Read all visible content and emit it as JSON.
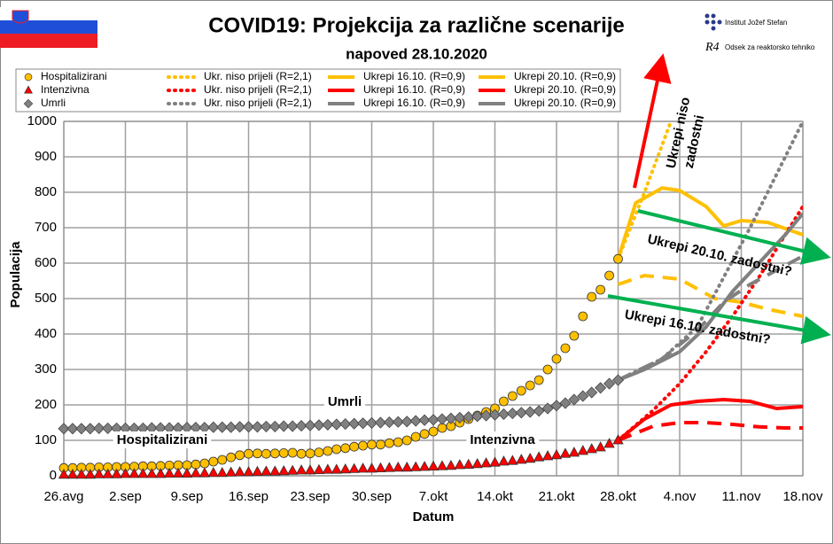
{
  "header": {
    "institute": "Institut Jožef Stefan",
    "logo": "R4",
    "department": "Odsek za reaktorsko tehniko"
  },
  "chart_data": {
    "type": "line",
    "title": "COVID19: Projekcija za različne scenarije",
    "subtitle": "napoved 28.10.2020",
    "x_label": "Datum",
    "y_label": "Populacija",
    "xlim": [
      0,
      84
    ],
    "ylim": [
      0,
      1000
    ],
    "xticks": [
      {
        "value": 0,
        "label": "26.avg"
      },
      {
        "value": 7,
        "label": "2.sep"
      },
      {
        "value": 14,
        "label": "9.sep"
      },
      {
        "value": 21,
        "label": "16.sep"
      },
      {
        "value": 28,
        "label": "23.sep"
      },
      {
        "value": 35,
        "label": "30.sep"
      },
      {
        "value": 42,
        "label": "7.okt"
      },
      {
        "value": 49,
        "label": "14.okt"
      },
      {
        "value": 56,
        "label": "21.okt"
      },
      {
        "value": 63,
        "label": "28.okt"
      },
      {
        "value": 70,
        "label": "4.nov"
      },
      {
        "value": 77,
        "label": "11.nov"
      },
      {
        "value": 84,
        "label": "18.nov"
      }
    ],
    "yticks": [
      0,
      100,
      200,
      300,
      400,
      500,
      600,
      700,
      800,
      900,
      1000
    ],
    "grid": true,
    "series": [
      {
        "name": "Hospitalizirani",
        "color": "#FFC000",
        "marker": "circle",
        "x": [
          0,
          1,
          2,
          3,
          4,
          5,
          6,
          7,
          8,
          9,
          10,
          11,
          12,
          13,
          14,
          15,
          16,
          17,
          18,
          19,
          20,
          21,
          22,
          23,
          24,
          25,
          26,
          27,
          28,
          29,
          30,
          31,
          32,
          33,
          34,
          35,
          36,
          37,
          38,
          39,
          40,
          41,
          42,
          43,
          44,
          45,
          46,
          47,
          48,
          49,
          50,
          51,
          52,
          53,
          54,
          55,
          56,
          57,
          58,
          59,
          60,
          61,
          62,
          63
        ],
        "values": [
          22,
          22,
          23,
          23,
          24,
          24,
          25,
          25,
          26,
          27,
          27,
          28,
          29,
          30,
          30,
          32,
          35,
          40,
          45,
          52,
          58,
          62,
          63,
          62,
          63,
          64,
          65,
          62,
          63,
          66,
          70,
          75,
          78,
          82,
          85,
          88,
          88,
          92,
          95,
          100,
          110,
          118,
          125,
          135,
          140,
          150,
          160,
          170,
          180,
          190,
          210,
          225,
          240,
          255,
          270,
          300,
          330,
          360,
          395,
          450,
          505,
          525,
          565,
          612
        ]
      },
      {
        "name": "Ukr. niso prijeli (R=2,1)",
        "color": "#FFC000",
        "style": "dotted",
        "x": [
          63,
          66,
          69
        ],
        "values": [
          612,
          800,
          1000
        ]
      },
      {
        "name": "Ukrepi 16.10. (R=0,9)",
        "color": "#FFC000",
        "style": "dashed",
        "x": [
          63,
          66,
          70,
          74,
          77,
          80,
          84
        ],
        "values": [
          540,
          565,
          555,
          500,
          490,
          470,
          450
        ]
      },
      {
        "name": "Ukrepi 20.10. (R=0,9)",
        "color": "#FFC000",
        "style": "solid",
        "x": [
          63,
          65,
          68,
          70,
          73,
          75,
          77,
          80,
          84
        ],
        "values": [
          612,
          770,
          812,
          805,
          760,
          705,
          720,
          715,
          680
        ]
      },
      {
        "name": "Intenzivna",
        "color": "#FF0000",
        "marker": "triangle",
        "x": [
          0,
          1,
          2,
          3,
          4,
          5,
          6,
          7,
          8,
          9,
          10,
          11,
          12,
          13,
          14,
          15,
          16,
          17,
          18,
          19,
          20,
          21,
          22,
          23,
          24,
          25,
          26,
          27,
          28,
          29,
          30,
          31,
          32,
          33,
          34,
          35,
          36,
          37,
          38,
          39,
          40,
          41,
          42,
          43,
          44,
          45,
          46,
          47,
          48,
          49,
          50,
          51,
          52,
          53,
          54,
          55,
          56,
          57,
          58,
          59,
          60,
          61,
          62,
          63
        ],
        "values": [
          3,
          3,
          3,
          3,
          4,
          4,
          4,
          5,
          5,
          5,
          5,
          5,
          6,
          6,
          6,
          7,
          7,
          8,
          8,
          9,
          10,
          10,
          11,
          12,
          12,
          13,
          14,
          15,
          15,
          16,
          17,
          17,
          18,
          19,
          20,
          20,
          21,
          22,
          23,
          23,
          24,
          25,
          26,
          27,
          28,
          30,
          31,
          33,
          35,
          37,
          40,
          42,
          45,
          48,
          52,
          55,
          58,
          62,
          65,
          70,
          75,
          80,
          90,
          100
        ]
      },
      {
        "name": "Ukr. niso prijeli (R=2,1)",
        "color": "#FF0000",
        "style": "dotted",
        "x": [
          63,
          67,
          70,
          73,
          76,
          79,
          82,
          84
        ],
        "values": [
          100,
          185,
          260,
          350,
          450,
          560,
          680,
          760
        ]
      },
      {
        "name": "Ukrepi 16.10. (R=0,9)",
        "color": "#FF0000",
        "style": "dashed",
        "x": [
          63,
          67,
          70,
          73,
          76,
          79,
          82,
          84
        ],
        "values": [
          100,
          140,
          150,
          150,
          145,
          138,
          135,
          135
        ]
      },
      {
        "name": "Ukrepi 20.10. (R=0,9)",
        "color": "#FF0000",
        "style": "solid",
        "x": [
          63,
          66,
          69,
          72,
          75,
          78,
          81,
          84
        ],
        "values": [
          100,
          160,
          200,
          210,
          215,
          210,
          190,
          195
        ]
      },
      {
        "name": "Umrli",
        "color": "#808080",
        "marker": "diamond",
        "x": [
          0,
          1,
          2,
          3,
          4,
          5,
          6,
          7,
          8,
          9,
          10,
          11,
          12,
          13,
          14,
          15,
          16,
          17,
          18,
          19,
          20,
          21,
          22,
          23,
          24,
          25,
          26,
          27,
          28,
          29,
          30,
          31,
          32,
          33,
          34,
          35,
          36,
          37,
          38,
          39,
          40,
          41,
          42,
          43,
          44,
          45,
          46,
          47,
          48,
          49,
          50,
          51,
          52,
          53,
          54,
          55,
          56,
          57,
          58,
          59,
          60,
          61,
          62,
          63
        ],
        "values": [
          133,
          133,
          133,
          133,
          134,
          134,
          134,
          134,
          134,
          134,
          135,
          135,
          135,
          135,
          136,
          136,
          136,
          137,
          137,
          137,
          138,
          138,
          138,
          139,
          139,
          140,
          140,
          141,
          142,
          143,
          144,
          145,
          146,
          147,
          148,
          149,
          150,
          151,
          152,
          153,
          155,
          157,
          158,
          160,
          162,
          164,
          166,
          168,
          170,
          172,
          174,
          176,
          178,
          180,
          183,
          190,
          198,
          205,
          215,
          225,
          235,
          248,
          260,
          270
        ]
      },
      {
        "name": "Ukr. niso prijeli (R=2,1)",
        "color": "#808080",
        "style": "dotted",
        "x": [
          63,
          68,
          72,
          75,
          78,
          81,
          84
        ],
        "values": [
          270,
          330,
          420,
          560,
          700,
          850,
          1000
        ]
      },
      {
        "name": "Ukrepi 16.10. (R=0,9)",
        "color": "#808080",
        "style": "dashed",
        "x": [
          63,
          68,
          72,
          75,
          78,
          81,
          84
        ],
        "values": [
          270,
          330,
          410,
          490,
          540,
          580,
          620
        ]
      },
      {
        "name": "Ukrepi 20.10. (R=0,9)",
        "color": "#808080",
        "style": "solid",
        "x": [
          63,
          66,
          70,
          73,
          76,
          79,
          82,
          84
        ],
        "values": [
          270,
          300,
          350,
          420,
          520,
          600,
          680,
          740
        ]
      }
    ],
    "annotations": [
      "Umrli",
      "Hospitalizirani",
      "Intenzivna",
      "Ukrepi niso",
      "zadostni",
      "Ukrepi 20.10. zadostni?",
      "Ukrepi 16.10. zadostni?"
    ]
  }
}
